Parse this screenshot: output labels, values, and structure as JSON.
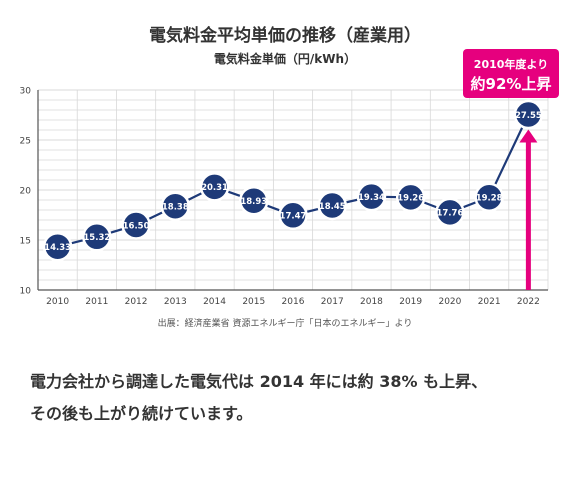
{
  "chart_data": {
    "type": "line",
    "title": "電気料金平均単価の推移（産業用）",
    "subtitle": "電気料金単価（円/kWh）",
    "categories": [
      "2010",
      "2011",
      "2012",
      "2013",
      "2014",
      "2015",
      "2016",
      "2017",
      "2018",
      "2019",
      "2020",
      "2021",
      "2022"
    ],
    "series": [
      {
        "values": [
          14.33,
          15.32,
          16.5,
          18.38,
          20.31,
          18.93,
          17.47,
          18.45,
          19.34,
          19.26,
          17.76,
          19.28,
          27.55
        ]
      }
    ],
    "data_labels": [
      "14.33",
      "15.32",
      "16.50",
      "18.38",
      "20.31",
      "18.93",
      "17.47",
      "18.45",
      "19.34",
      "19.26",
      "17.76",
      "19.28",
      "27.55"
    ],
    "y_ticks": [
      "10",
      "15",
      "20",
      "25",
      "30"
    ],
    "ylim": [
      10,
      30
    ],
    "grid": true,
    "source": "出展：経済産業省 資源エネルギー庁「日本のエネルギー」より",
    "callout": {
      "line1": "2010年度より",
      "line2": "約92%上昇"
    },
    "colors": {
      "line": "#1e3a78",
      "marker": "#1e3a78",
      "highlight": "#e6007e",
      "grid": "#d8d8d8",
      "axis": "#555555"
    }
  },
  "caption": {
    "line1": "電力会社から調達した電気代は 2014 年には約 38% も上昇、",
    "line2": "その後も上がり続けています。"
  }
}
